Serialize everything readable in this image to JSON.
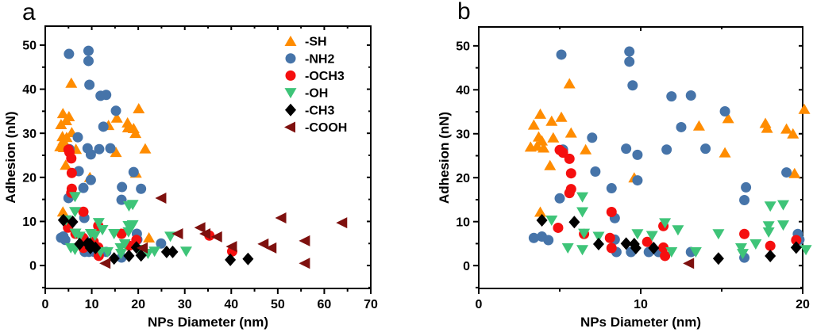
{
  "figure": {
    "background": "#ffffff",
    "text_color": "#000000",
    "spine_color": "#000000"
  },
  "chart_data": {
    "type": "scatter",
    "title": "",
    "xlabel": "NPs Diameter (nm)",
    "ylabel": "Adhesion (nN)",
    "grid": false,
    "legend_position": "inside top-right of panel a",
    "panels": [
      {
        "label": "a",
        "xlim": [
          0,
          70
        ],
        "ylim": [
          -5.2,
          54.3
        ],
        "xticks": [
          0,
          10,
          20,
          30,
          40,
          50,
          60,
          70
        ],
        "yticks": [
          0,
          10,
          20,
          30,
          40,
          50
        ],
        "x_minor_step": 5,
        "y_minor_step": 5,
        "show_legend": true,
        "show_ylabel": true
      },
      {
        "label": "b",
        "xlim": [
          0,
          20
        ],
        "ylim": [
          -5.2,
          54.3
        ],
        "xticks": [
          0,
          10,
          20
        ],
        "yticks": [
          0,
          10,
          20,
          30,
          40,
          50
        ],
        "x_minor_step": 5,
        "y_minor_step": 5,
        "show_legend": false,
        "show_ylabel": true,
        "note": "same data as panel a with x-axis zoomed to 0-20 nm"
      }
    ],
    "series": [
      {
        "name": "-SH",
        "marker": "triangle-up",
        "color": "#FF8C00",
        "points": [
          [
            3.2,
            27
          ],
          [
            3.6,
            27.2
          ],
          [
            4.0,
            26.8
          ],
          [
            3.7,
            29.3
          ],
          [
            3.9,
            28.4
          ],
          [
            4.6,
            29.1
          ],
          [
            3.4,
            32
          ],
          [
            3.8,
            34.5
          ],
          [
            4.5,
            32.9
          ],
          [
            5.1,
            33.8
          ],
          [
            5.7,
            30.2
          ],
          [
            6.6,
            26.4
          ],
          [
            5.6,
            41.4
          ],
          [
            4.4,
            22.8
          ],
          [
            3.8,
            12.2
          ],
          [
            9.6,
            20
          ],
          [
            13.6,
            31.8
          ],
          [
            15.4,
            33.5
          ],
          [
            15.2,
            25.7
          ],
          [
            17.7,
            32.4
          ],
          [
            17.8,
            31.3
          ],
          [
            19,
            31.1
          ],
          [
            19.4,
            30
          ],
          [
            19.5,
            21
          ],
          [
            20.1,
            35.6
          ],
          [
            21.5,
            26.5
          ],
          [
            22.3,
            6.3
          ]
        ]
      },
      {
        "name": "-NH2",
        "marker": "circle",
        "color": "#4674A9",
        "points": [
          [
            5.1,
            48
          ],
          [
            9.3,
            48.7
          ],
          [
            9.3,
            46.4
          ],
          [
            9.5,
            41
          ],
          [
            11.9,
            38.5
          ],
          [
            13.1,
            38.7
          ],
          [
            15.2,
            35.1
          ],
          [
            12.5,
            31.5
          ],
          [
            7,
            29.1
          ],
          [
            5.2,
            26.4
          ],
          [
            9.1,
            26.6
          ],
          [
            11.6,
            26.4
          ],
          [
            14,
            26.6
          ],
          [
            9.8,
            25.2
          ],
          [
            7.2,
            21.4
          ],
          [
            19,
            21.2
          ],
          [
            9.8,
            19.4
          ],
          [
            8.2,
            17.6
          ],
          [
            16.5,
            17.8
          ],
          [
            5,
            15.3
          ],
          [
            16.4,
            14.9
          ],
          [
            8.4,
            10.8
          ],
          [
            3.4,
            6.3
          ],
          [
            3.9,
            6.6
          ],
          [
            4.3,
            5.8
          ],
          [
            8.4,
            5.9
          ],
          [
            19.7,
            7.2
          ],
          [
            19.8,
            5.9
          ],
          [
            8.5,
            3.1
          ],
          [
            9.4,
            3.1
          ],
          [
            10.5,
            3.1
          ],
          [
            11.1,
            3.1
          ],
          [
            13.1,
            3.1
          ],
          [
            16.4,
            1.8
          ],
          [
            20.6,
            17.4
          ],
          [
            24.9,
            5
          ]
        ]
      },
      {
        "name": "-OCH3",
        "marker": "circle",
        "color": "#F50F0F",
        "points": [
          [
            5.0,
            26.3
          ],
          [
            5.2,
            25.7
          ],
          [
            5.6,
            24.3
          ],
          [
            5.7,
            21
          ],
          [
            5.7,
            17.4
          ],
          [
            5.6,
            16.5
          ],
          [
            8.2,
            12.2
          ],
          [
            4.9,
            8.6
          ],
          [
            6.5,
            7.2
          ],
          [
            8.1,
            6.3
          ],
          [
            8.2,
            4
          ],
          [
            10.4,
            5.4
          ],
          [
            11.4,
            9
          ],
          [
            11.4,
            4.1
          ],
          [
            11.5,
            2.2
          ],
          [
            16.4,
            7.2
          ],
          [
            18,
            4.5
          ],
          [
            19.6,
            5.8
          ],
          [
            35.3,
            6.8
          ],
          [
            40.2,
            3.2
          ]
        ]
      },
      {
        "name": "-OH",
        "marker": "triangle-down",
        "color": "#3EC478",
        "points": [
          [
            6.4,
            15.6
          ],
          [
            6.4,
            12.2
          ],
          [
            4.5,
            10.3
          ],
          [
            6.5,
            7.3
          ],
          [
            7.4,
            6.6
          ],
          [
            5.5,
            4
          ],
          [
            6.4,
            3.6
          ],
          [
            9.8,
            7.2
          ],
          [
            11.5,
            9.7
          ],
          [
            12.3,
            8.1
          ],
          [
            10.7,
            6.8
          ],
          [
            11.9,
            3.1
          ],
          [
            13.4,
            3.1
          ],
          [
            14.8,
            7.2
          ],
          [
            16.2,
            4
          ],
          [
            16.3,
            2.7
          ],
          [
            17.1,
            4.9
          ],
          [
            17.9,
            9
          ],
          [
            18.8,
            9.2
          ],
          [
            17.9,
            7.6
          ],
          [
            18,
            13.5
          ],
          [
            18.8,
            13.8
          ],
          [
            20.2,
            3.6
          ],
          [
            22.1,
            2.7
          ],
          [
            23.5,
            3.2
          ],
          [
            26.9,
            6.6
          ],
          [
            30.3,
            3.2
          ]
        ]
      },
      {
        "name": "-CH3",
        "marker": "diamond",
        "color": "#000000",
        "points": [
          [
            3.9,
            10.3
          ],
          [
            5.9,
            9.9
          ],
          [
            7.4,
            4.9
          ],
          [
            9.1,
            5
          ],
          [
            9.6,
            4.9
          ],
          [
            9.7,
            4
          ],
          [
            10.8,
            4
          ],
          [
            14.8,
            1.6
          ],
          [
            18,
            2.2
          ],
          [
            19.6,
            4.1
          ],
          [
            20.6,
            2.3
          ],
          [
            26.1,
            3.1
          ],
          [
            27.4,
            3.1
          ],
          [
            39.8,
            1.3
          ],
          [
            43.6,
            1.5
          ]
        ]
      },
      {
        "name": "-COOH",
        "marker": "triangle-left",
        "color": "#7E100E",
        "points": [
          [
            13,
            0.5
          ],
          [
            21,
            4
          ],
          [
            25,
            15.3
          ],
          [
            28.6,
            7.2
          ],
          [
            33.4,
            8.6
          ],
          [
            34.5,
            7.2
          ],
          [
            37,
            6.5
          ],
          [
            40.2,
            4.3
          ],
          [
            47,
            4.9
          ],
          [
            48.7,
            4
          ],
          [
            50.8,
            10.8
          ],
          [
            55.9,
            5.6
          ],
          [
            55.9,
            0.5
          ],
          [
            63.9,
            9.7
          ]
        ]
      }
    ]
  }
}
